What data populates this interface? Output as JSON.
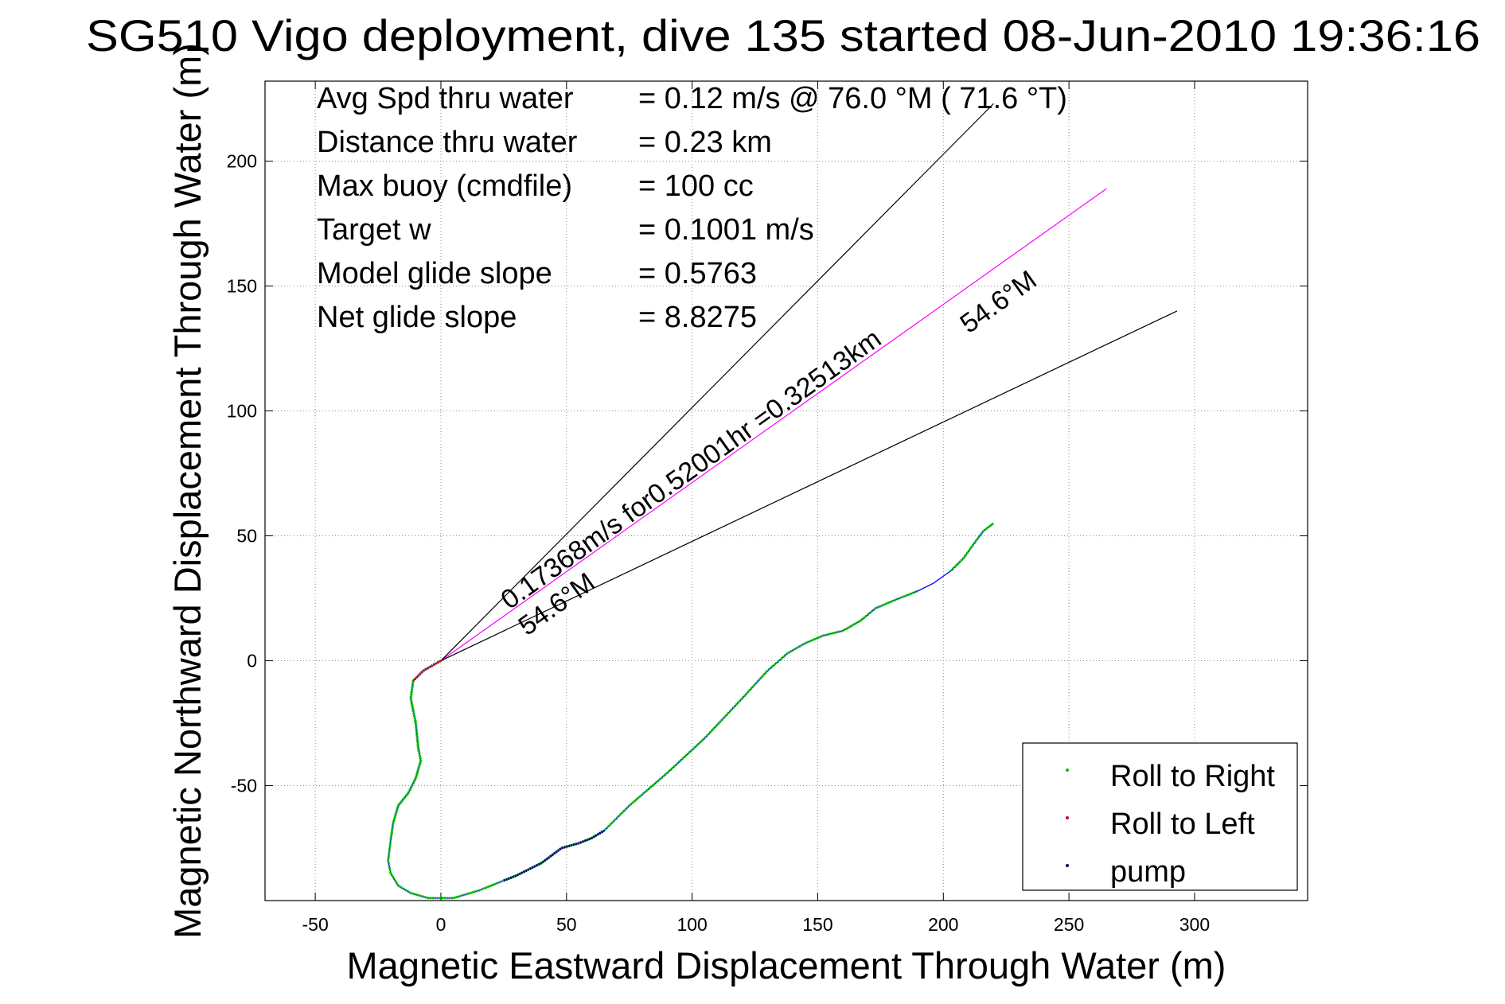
{
  "chart_data": {
    "type": "line",
    "title": "SG510 Vigo deployment, dive 135 started 08-Jun-2010 19:36:16",
    "xlabel": "Magnetic Eastward Displacement Through Water (m)",
    "ylabel": "Magnetic Northward Displacement Through Water (m)",
    "xlim": [
      -70,
      345
    ],
    "ylim": [
      -96,
      232
    ],
    "xticks": [
      -50,
      0,
      50,
      100,
      150,
      200,
      250,
      300
    ],
    "yticks": [
      -50,
      0,
      50,
      100,
      150,
      200
    ],
    "grid": true,
    "legend_position": "bottom-right",
    "colors": {
      "track": "#0000ff",
      "roll_right": "#00c000",
      "roll_left": "#d0002a",
      "pump": "#00006e",
      "current_line": "#ff00ff",
      "guide": "#000000"
    },
    "track": {
      "x": [
        0,
        -7,
        -11,
        -12,
        -10,
        -9,
        -8,
        -10,
        -13,
        -17,
        -19,
        -20,
        -21,
        -20,
        -17,
        -12,
        -5,
        5,
        15,
        25,
        30,
        40,
        48,
        55,
        60,
        65,
        75,
        90,
        105,
        120,
        130,
        138,
        145,
        152,
        160,
        167,
        173,
        180,
        190,
        196,
        203,
        208,
        213,
        216,
        220
      ],
      "y": [
        0,
        -4,
        -8,
        -15,
        -25,
        -35,
        -40,
        -47,
        -53,
        -58,
        -65,
        -72,
        -80,
        -85,
        -90,
        -93,
        -95,
        -95,
        -92,
        -88,
        -86,
        -81,
        -75,
        -73,
        -71,
        -68,
        -58,
        -45,
        -31,
        -15,
        -4,
        3,
        7,
        10,
        12,
        16,
        21,
        24,
        28,
        31,
        36,
        41,
        48,
        52,
        55
      ]
    },
    "series": [
      {
        "name": "Roll to Right",
        "segments": [
          [
            -11,
            -9
          ],
          [
            -10,
            0
          ],
          [
            -9,
            -85
          ],
          [
            0,
            38
          ],
          [
            40,
            44
          ]
        ]
      },
      {
        "name": "Roll to Left",
        "segments": [
          [
            0,
            2
          ],
          [
            47,
            49
          ],
          [
            59,
            61
          ]
        ]
      },
      {
        "name": "pump",
        "segments": [
          [
            19,
            25
          ]
        ]
      }
    ],
    "guide_lines": [
      {
        "type": "heading_line",
        "from": [
          0,
          0
        ],
        "to": [
          265,
          189
        ]
      },
      {
        "type": "bound_line",
        "from": [
          0,
          0
        ],
        "to": [
          220,
          223
        ]
      },
      {
        "type": "bound_line",
        "from": [
          0,
          0
        ],
        "to": [
          293,
          140
        ]
      }
    ],
    "text_box": [
      {
        "label": "Avg Spd thru water",
        "value": "=  0.12 m/s @  76.0 °M ( 71.6 °T)"
      },
      {
        "label": "Distance thru water",
        "value": "=  0.23 km"
      },
      {
        "label": "Max buoy (cmdfile)",
        "value": "= 100 cc"
      },
      {
        "label": "Target w",
        "value": "= 0.1001 m/s"
      },
      {
        "label": "Model glide slope",
        "value": "= 0.5763"
      },
      {
        "label": "Net glide slope",
        "value": "= 8.8275"
      }
    ],
    "annotations": {
      "current_label": "0.17368m/s for0.52001hr =0.32513km",
      "heading_lower": "54.6°M",
      "heading_upper": "54.6°M"
    }
  }
}
